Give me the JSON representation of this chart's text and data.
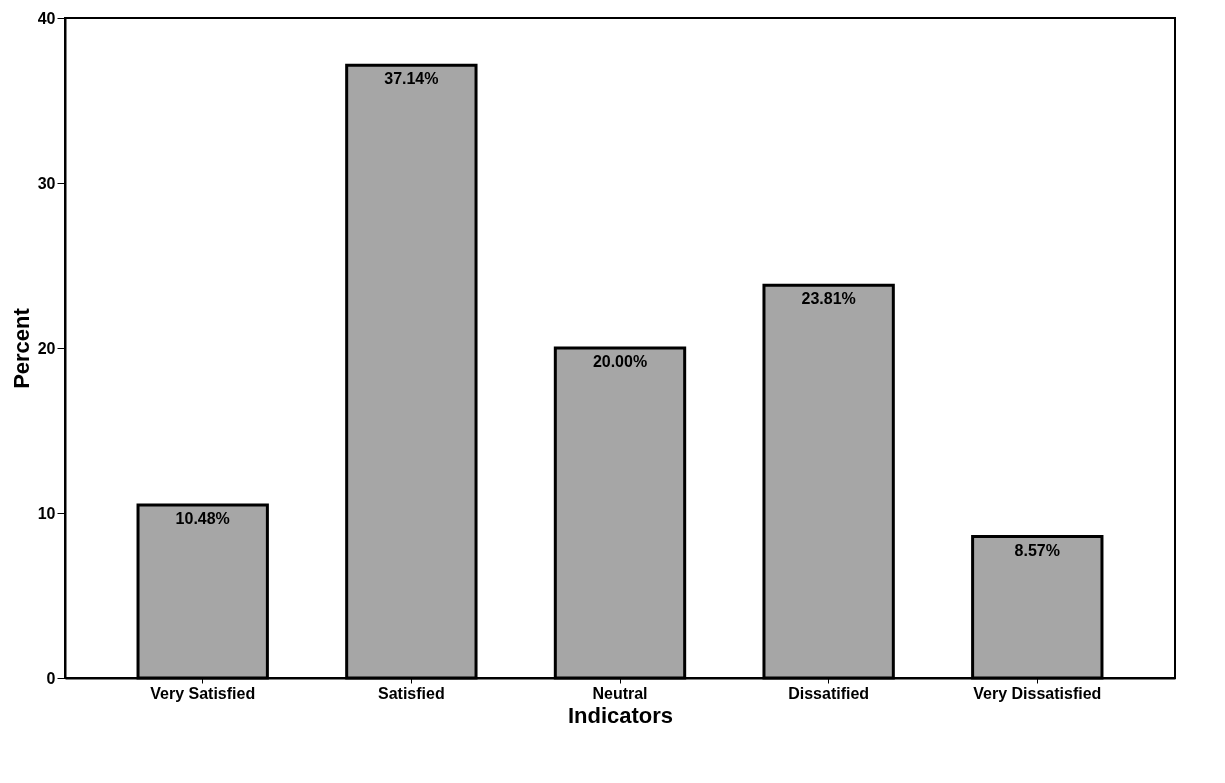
{
  "chart_data": {
    "type": "bar",
    "xlabel": "Indicators",
    "ylabel": "Percent",
    "categories": [
      "Very Satisfied",
      "Satisfied",
      "Neutral",
      "Dissatified",
      "Very Dissatisfied"
    ],
    "values": [
      10.48,
      37.14,
      20.0,
      23.81,
      8.57
    ],
    "value_labels": [
      "10.48%",
      "37.14%",
      "20.00%",
      "23.81%",
      "8.57%"
    ],
    "color": "#a6a6a6",
    "ylim": [
      0,
      40
    ],
    "yticks": [
      0,
      10,
      20,
      30,
      40
    ],
    "grid": false
  }
}
